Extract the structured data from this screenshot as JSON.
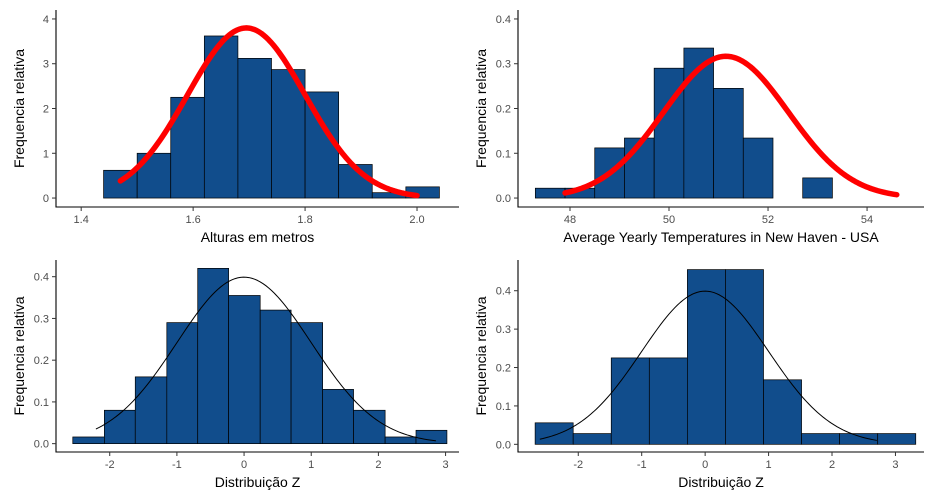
{
  "chart_data": [
    {
      "type": "bar",
      "xlabel": "Alturas em metros",
      "ylabel": "Frequencia relativa",
      "xlim": [
        1.355,
        2.075
      ],
      "ylim": [
        -0.2,
        4.2
      ],
      "xticks": [
        1.4,
        1.6,
        1.8,
        2.0
      ],
      "xtick_labels": [
        "1.4",
        "1.6",
        "1.8",
        "2.0"
      ],
      "yticks": [
        0,
        1,
        2,
        3,
        4
      ],
      "ytick_labels": [
        "0",
        "1",
        "2",
        "3",
        "4"
      ],
      "bins": [
        {
          "x0": 1.44,
          "x1": 1.5,
          "value": 0.62
        },
        {
          "x0": 1.5,
          "x1": 1.56,
          "value": 1.0
        },
        {
          "x0": 1.56,
          "x1": 1.62,
          "value": 2.25
        },
        {
          "x0": 1.62,
          "x1": 1.68,
          "value": 3.62
        },
        {
          "x0": 1.68,
          "x1": 1.74,
          "value": 3.12
        },
        {
          "x0": 1.74,
          "x1": 1.8,
          "value": 2.87
        },
        {
          "x0": 1.8,
          "x1": 1.86,
          "value": 2.37
        },
        {
          "x0": 1.86,
          "x1": 1.92,
          "value": 0.75
        },
        {
          "x0": 1.92,
          "x1": 1.98,
          "value": 0.12
        },
        {
          "x0": 1.98,
          "x1": 2.04,
          "value": 0.25
        }
      ],
      "density_curve": {
        "mean": 1.695,
        "sd": 0.105,
        "x_from": 1.47,
        "x_to": 2.0,
        "color": "#ff0000",
        "thick": true
      },
      "bar_color": "#114d8c",
      "grid": false
    },
    {
      "type": "bar",
      "xlabel": "Average Yearly Temperatures in New Haven - USA",
      "ylabel": "Frequencia relativa",
      "xlim": [
        46.95,
        55.15
      ],
      "ylim": [
        -0.02,
        0.42
      ],
      "xticks": [
        48,
        50,
        52,
        54
      ],
      "xtick_labels": [
        "48",
        "50",
        "52",
        "54"
      ],
      "yticks": [
        0,
        0.1,
        0.2,
        0.3,
        0.4
      ],
      "ytick_labels": [
        "0.0",
        "0.1",
        "0.2",
        "0.3",
        "0.4"
      ],
      "bins": [
        {
          "x0": 47.3,
          "x1": 47.9,
          "value": 0.022
        },
        {
          "x0": 47.9,
          "x1": 48.5,
          "value": 0.022
        },
        {
          "x0": 48.5,
          "x1": 49.1,
          "value": 0.112
        },
        {
          "x0": 49.1,
          "x1": 49.7,
          "value": 0.134
        },
        {
          "x0": 49.7,
          "x1": 50.3,
          "value": 0.29
        },
        {
          "x0": 50.3,
          "x1": 50.9,
          "value": 0.335
        },
        {
          "x0": 50.9,
          "x1": 51.5,
          "value": 0.245
        },
        {
          "x0": 51.5,
          "x1": 52.1,
          "value": 0.134
        },
        {
          "x0": 52.1,
          "x1": 52.7,
          "value": 0.0
        },
        {
          "x0": 52.7,
          "x1": 53.3,
          "value": 0.045
        }
      ],
      "density_curve": {
        "mean": 51.15,
        "sd": 1.26,
        "x_from": 47.9,
        "x_to": 54.6,
        "color": "#ff0000",
        "thick": true
      },
      "bar_color": "#114d8c",
      "grid": false
    },
    {
      "type": "bar",
      "xlabel": "Distribuição Z",
      "ylabel": "Frequencia relativa",
      "xlim": [
        -2.8,
        3.2
      ],
      "ylim": [
        -0.02,
        0.44
      ],
      "xticks": [
        -2,
        -1,
        0,
        1,
        2,
        3
      ],
      "xtick_labels": [
        "-2",
        "-1",
        "0",
        "1",
        "2",
        "3"
      ],
      "yticks": [
        0,
        0.1,
        0.2,
        0.3,
        0.4
      ],
      "ytick_labels": [
        "0.0",
        "0.1",
        "0.2",
        "0.3",
        "0.4"
      ],
      "bins": [
        {
          "x0": -2.55,
          "x1": -2.08,
          "value": 0.016
        },
        {
          "x0": -2.08,
          "x1": -1.62,
          "value": 0.08
        },
        {
          "x0": -1.62,
          "x1": -1.15,
          "value": 0.16
        },
        {
          "x0": -1.15,
          "x1": -0.69,
          "value": 0.29
        },
        {
          "x0": -0.69,
          "x1": -0.23,
          "value": 0.42
        },
        {
          "x0": -0.23,
          "x1": 0.24,
          "value": 0.355
        },
        {
          "x0": 0.24,
          "x1": 0.7,
          "value": 0.32
        },
        {
          "x0": 0.7,
          "x1": 1.17,
          "value": 0.29
        },
        {
          "x0": 1.17,
          "x1": 1.63,
          "value": 0.13
        },
        {
          "x0": 1.63,
          "x1": 2.1,
          "value": 0.08
        },
        {
          "x0": 2.1,
          "x1": 2.56,
          "value": 0.016
        },
        {
          "x0": 2.56,
          "x1": 3.02,
          "value": 0.032
        }
      ],
      "density_curve": {
        "mean": 0,
        "sd": 1,
        "x_from": -2.2,
        "x_to": 2.85,
        "color": "#000000",
        "thick": false
      },
      "bar_color": "#114d8c",
      "grid": false
    },
    {
      "type": "bar",
      "xlabel": "Distribuição Z",
      "ylabel": "Frequencia relativa",
      "xlim": [
        -2.95,
        3.45
      ],
      "ylim": [
        -0.02,
        0.48
      ],
      "xticks": [
        -2,
        -1,
        0,
        1,
        2,
        3
      ],
      "xtick_labels": [
        "-2",
        "-1",
        "0",
        "1",
        "2",
        "3"
      ],
      "yticks": [
        0,
        0.1,
        0.2,
        0.3,
        0.4
      ],
      "ytick_labels": [
        "0.0",
        "0.1",
        "0.2",
        "0.3",
        "0.4"
      ],
      "bins": [
        {
          "x0": -2.68,
          "x1": -2.08,
          "value": 0.056
        },
        {
          "x0": -2.08,
          "x1": -1.48,
          "value": 0.028
        },
        {
          "x0": -1.48,
          "x1": -0.88,
          "value": 0.225
        },
        {
          "x0": -0.88,
          "x1": -0.28,
          "value": 0.225
        },
        {
          "x0": -0.28,
          "x1": 0.32,
          "value": 0.455
        },
        {
          "x0": 0.32,
          "x1": 0.92,
          "value": 0.455
        },
        {
          "x0": 0.92,
          "x1": 1.52,
          "value": 0.168
        },
        {
          "x0": 1.52,
          "x1": 2.12,
          "value": 0.028
        },
        {
          "x0": 2.12,
          "x1": 2.72,
          "value": 0.028
        },
        {
          "x0": 2.72,
          "x1": 3.32,
          "value": 0.028
        }
      ],
      "density_curve": {
        "mean": 0,
        "sd": 1,
        "x_from": -2.6,
        "x_to": 2.7,
        "color": "#000000",
        "thick": false
      },
      "bar_color": "#114d8c",
      "grid": false
    }
  ]
}
